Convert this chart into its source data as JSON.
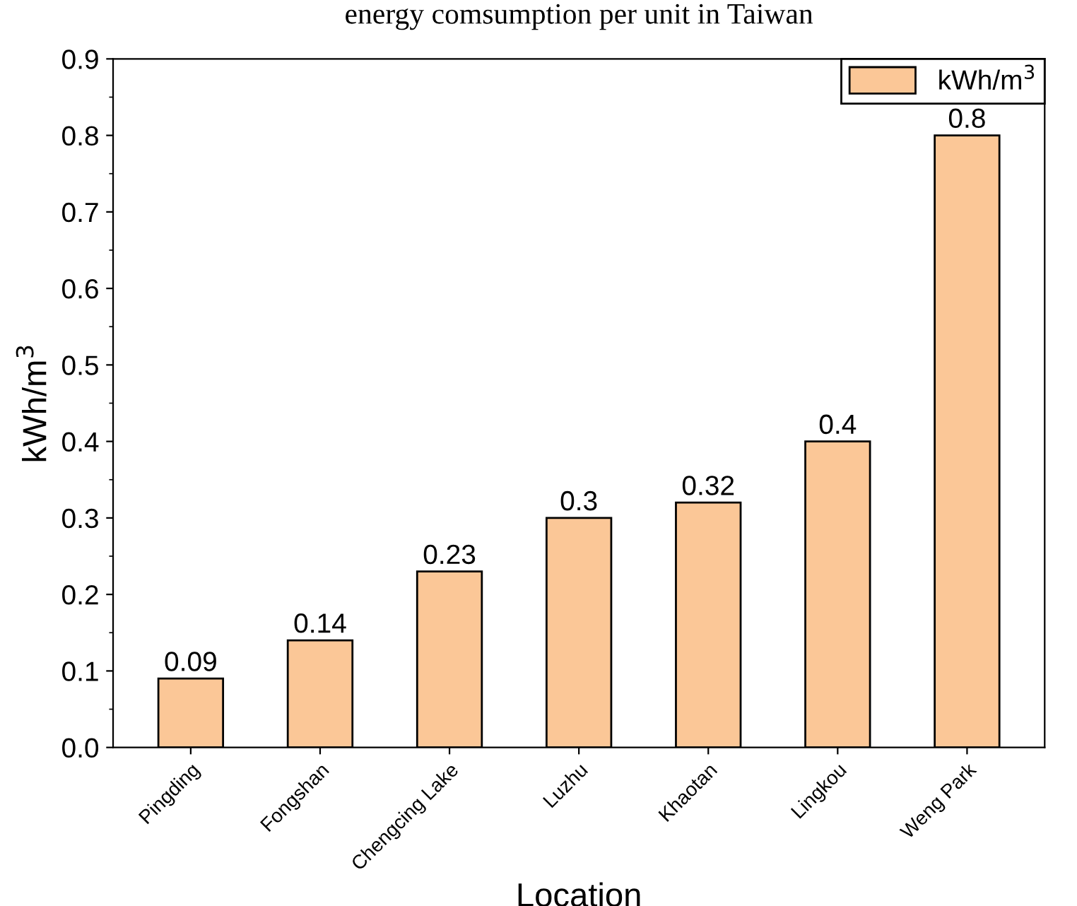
{
  "chart_data": {
    "type": "bar",
    "title": "energy comsumption per unit in Taiwan",
    "xlabel": "Location",
    "ylabel": "kWh/m$^{3}$",
    "categories": [
      "Pingding",
      "Fongshan",
      "Chengcing Lake",
      "Luzhu",
      "Khaotan",
      "Lingkou",
      "Weng Park"
    ],
    "series": [
      {
        "name": "kWh/m$^{3}$",
        "color": "#fbc797",
        "values": [
          0.09,
          0.14,
          0.23,
          0.3,
          0.32,
          0.4,
          0.8
        ]
      }
    ],
    "ylim": [
      0,
      0.9
    ],
    "yticks": [
      {
        "value": 0,
        "label": "0.0"
      },
      0.1,
      0.2,
      0.3,
      0.4,
      0.5,
      0.6,
      0.7,
      0.8,
      0.9
    ],
    "data_labels": true,
    "legend": "top right",
    "grid": false
  }
}
